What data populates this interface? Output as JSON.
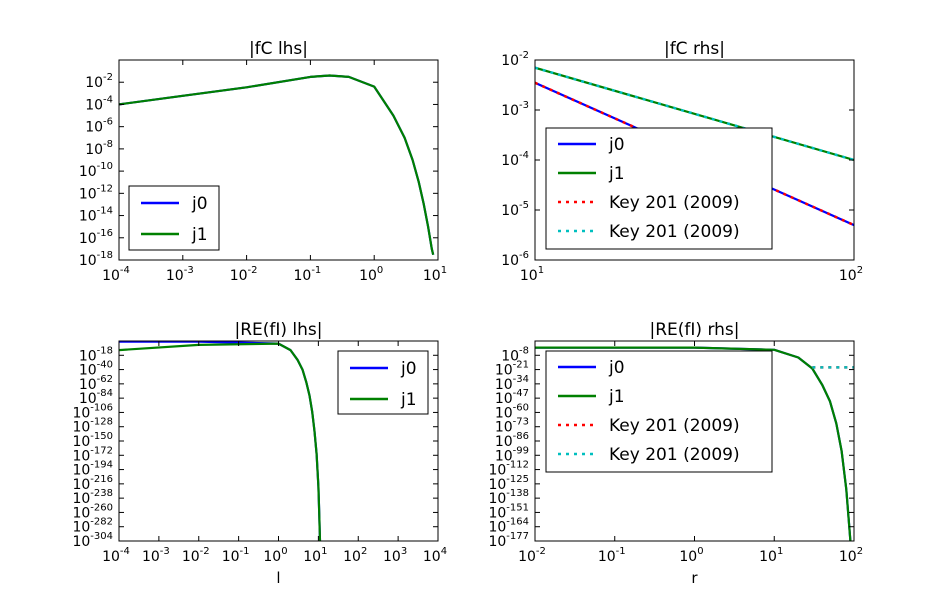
{
  "chart_data": [
    {
      "type": "line",
      "title": "|fC lhs|",
      "xlabel": "",
      "ylabel": "",
      "xscale": "log",
      "yscale": "log",
      "xlim": [
        0.0001,
        10
      ],
      "ylim": [
        1e-18,
        1
      ],
      "xticks": [
        {
          "base": "10",
          "exp": "-4"
        },
        {
          "base": "10",
          "exp": "-3"
        },
        {
          "base": "10",
          "exp": "-2"
        },
        {
          "base": "10",
          "exp": "-1"
        },
        {
          "base": "10",
          "exp": "0"
        },
        {
          "base": "10",
          "exp": "1"
        }
      ],
      "yticks": [
        {
          "base": "10",
          "exp": "-2"
        },
        {
          "base": "10",
          "exp": "-4"
        },
        {
          "base": "10",
          "exp": "-6"
        },
        {
          "base": "10",
          "exp": "-8"
        },
        {
          "base": "10",
          "exp": "-10"
        },
        {
          "base": "10",
          "exp": "-12"
        },
        {
          "base": "10",
          "exp": "-14"
        },
        {
          "base": "10",
          "exp": "-16"
        },
        {
          "base": "10",
          "exp": "-18"
        }
      ],
      "legend": {
        "placement": "lower-left",
        "entries": [
          "j0",
          "j1"
        ]
      },
      "series": [
        {
          "name": "j0",
          "color": "#0000ff",
          "style": "solid",
          "x": [
            0.0001,
            0.001,
            0.01,
            0.1,
            0.2,
            0.4,
            1,
            2,
            3,
            4,
            5,
            6,
            7,
            8,
            8.4
          ],
          "y": [
            0.0001,
            0.0006,
            0.0035,
            0.03,
            0.04,
            0.03,
            0.004,
            1e-05,
            1e-07,
            1e-09,
            1e-11,
            1e-13,
            1e-15,
            1e-17,
            3e-18
          ]
        },
        {
          "name": "j1",
          "color": "#008000",
          "style": "solid",
          "x": [
            0.0001,
            0.001,
            0.01,
            0.1,
            0.2,
            0.4,
            1,
            2,
            3,
            4,
            5,
            6,
            7,
            8,
            8.4
          ],
          "y": [
            0.0001,
            0.0006,
            0.0035,
            0.03,
            0.04,
            0.03,
            0.004,
            1e-05,
            1e-07,
            1e-09,
            1e-11,
            1e-13,
            1e-15,
            1e-17,
            3e-18
          ]
        }
      ]
    },
    {
      "type": "line",
      "title": "|fC rhs|",
      "xlabel": "",
      "ylabel": "",
      "xscale": "log",
      "yscale": "log",
      "xlim": [
        10,
        100
      ],
      "ylim": [
        1e-06,
        0.01
      ],
      "xticks": [
        {
          "base": "10",
          "exp": "1"
        },
        {
          "base": "10",
          "exp": "2"
        }
      ],
      "yticks": [
        {
          "base": "10",
          "exp": "-2"
        },
        {
          "base": "10",
          "exp": "-3"
        },
        {
          "base": "10",
          "exp": "-4"
        },
        {
          "base": "10",
          "exp": "-5"
        },
        {
          "base": "10",
          "exp": "-6"
        }
      ],
      "legend": {
        "placement": "lower-left",
        "entries": [
          "j0",
          "j1",
          "Key 201 (2009)",
          "Key 201 (2009)"
        ]
      },
      "series": [
        {
          "name": "j0",
          "color": "#0000ff",
          "style": "solid",
          "x": [
            10,
            100
          ],
          "y": [
            0.0035,
            5e-06
          ]
        },
        {
          "name": "j1",
          "color": "#008000",
          "style": "solid",
          "x": [
            10,
            100
          ],
          "y": [
            0.007,
            0.0001
          ]
        },
        {
          "name": "Key 201 (2009)",
          "color": "#ff0000",
          "style": "dotted",
          "x": [
            10,
            100
          ],
          "y": [
            0.0035,
            5e-06
          ]
        },
        {
          "name": "Key 201 (2009)",
          "color": "#00bfbf",
          "style": "dotted",
          "x": [
            10,
            100
          ],
          "y": [
            0.007,
            0.0001
          ]
        }
      ]
    },
    {
      "type": "line",
      "title": "|RE(fI) lhs|",
      "xlabel": "l",
      "ylabel": "",
      "xscale": "log",
      "yscale": "log",
      "xlim": [
        0.0001,
        10000
      ],
      "ylim": [
        1e-304,
        10000.0
      ],
      "xticks": [
        {
          "base": "10",
          "exp": "-4"
        },
        {
          "base": "10",
          "exp": "-3"
        },
        {
          "base": "10",
          "exp": "-2"
        },
        {
          "base": "10",
          "exp": "-1"
        },
        {
          "base": "10",
          "exp": "0"
        },
        {
          "base": "10",
          "exp": "1"
        },
        {
          "base": "10",
          "exp": "2"
        },
        {
          "base": "10",
          "exp": "3"
        },
        {
          "base": "10",
          "exp": "4"
        }
      ],
      "yticks": [
        {
          "base": "10",
          "exp": "-18"
        },
        {
          "base": "10",
          "exp": "-40"
        },
        {
          "base": "10",
          "exp": "-62"
        },
        {
          "base": "10",
          "exp": "-84"
        },
        {
          "base": "10",
          "exp": "-106"
        },
        {
          "base": "10",
          "exp": "-128"
        },
        {
          "base": "10",
          "exp": "-150"
        },
        {
          "base": "10",
          "exp": "-172"
        },
        {
          "base": "10",
          "exp": "-194"
        },
        {
          "base": "10",
          "exp": "-216"
        },
        {
          "base": "10",
          "exp": "-238"
        },
        {
          "base": "10",
          "exp": "-260"
        },
        {
          "base": "10",
          "exp": "-282"
        },
        {
          "base": "10",
          "exp": "-304"
        }
      ],
      "legend": {
        "placement": "upper-right",
        "entries": [
          "j0",
          "j1"
        ]
      },
      "series": [
        {
          "name": "j0",
          "color": "#0000ff",
          "style": "solid",
          "x": [
            0.0001,
            0.01,
            1,
            2,
            3,
            4,
            5,
            6,
            7,
            8,
            9,
            10,
            10.5,
            11
          ],
          "y": [
            1000.0,
            1000.0,
            1,
            1e-10,
            1e-25,
            1e-40,
            1e-60,
            1e-80,
            1e-105,
            1e-135,
            1e-170,
            1e-220,
            1e-260,
            1e-304
          ]
        },
        {
          "name": "j1",
          "color": "#008000",
          "style": "solid",
          "x": [
            0.0001,
            0.01,
            1,
            2,
            3,
            4,
            5,
            6,
            7,
            8,
            9,
            10,
            10.5,
            11
          ],
          "y": [
            1e-10,
            0.01,
            1,
            1e-10,
            1e-25,
            1e-40,
            1e-60,
            1e-80,
            1e-105,
            1e-135,
            1e-170,
            1e-220,
            1e-260,
            1e-304
          ]
        }
      ]
    },
    {
      "type": "line",
      "title": "|RE(fI) rhs|",
      "xlabel": "r",
      "ylabel": "",
      "xscale": "log",
      "yscale": "log",
      "xlim": [
        0.01,
        100
      ],
      "ylim": [
        1e-177,
        100000.0
      ],
      "xticks": [
        {
          "base": "10",
          "exp": "-2"
        },
        {
          "base": "10",
          "exp": "-1"
        },
        {
          "base": "10",
          "exp": "0"
        },
        {
          "base": "10",
          "exp": "1"
        },
        {
          "base": "10",
          "exp": "2"
        }
      ],
      "yticks": [
        {
          "base": "10",
          "exp": "-8"
        },
        {
          "base": "10",
          "exp": "-21"
        },
        {
          "base": "10",
          "exp": "-34"
        },
        {
          "base": "10",
          "exp": "-47"
        },
        {
          "base": "10",
          "exp": "-60"
        },
        {
          "base": "10",
          "exp": "-73"
        },
        {
          "base": "10",
          "exp": "-86"
        },
        {
          "base": "10",
          "exp": "-99"
        },
        {
          "base": "10",
          "exp": "-112"
        },
        {
          "base": "10",
          "exp": "-125"
        },
        {
          "base": "10",
          "exp": "-138"
        },
        {
          "base": "10",
          "exp": "-151"
        },
        {
          "base": "10",
          "exp": "-164"
        },
        {
          "base": "10",
          "exp": "-177"
        }
      ],
      "legend": {
        "placement": "upper-left",
        "entries": [
          "j0",
          "j1",
          "Key 201 (2009)",
          "Key 201 (2009)"
        ]
      },
      "series": [
        {
          "name": "j0",
          "color": "#0000ff",
          "style": "solid",
          "x": [
            0.01,
            1,
            10,
            20,
            30,
            40,
            50,
            60,
            70,
            80,
            90
          ],
          "y": [
            0.1,
            0.1,
            0.001,
            1e-10,
            1e-20,
            1e-35,
            1e-50,
            1e-70,
            1e-95,
            1e-130,
            1e-177
          ]
        },
        {
          "name": "j1",
          "color": "#008000",
          "style": "solid",
          "x": [
            0.01,
            1,
            10,
            20,
            30,
            40,
            50,
            60,
            70,
            80,
            90
          ],
          "y": [
            0.1,
            0.1,
            0.001,
            1e-10,
            1e-20,
            1e-35,
            1e-50,
            1e-70,
            1e-95,
            1e-130,
            1e-177
          ]
        },
        {
          "name": "Key 201 (2009)",
          "color": "#ff0000",
          "style": "dotted",
          "x": [
            30,
            100
          ],
          "y": [
            1e-19,
            1e-19
          ]
        },
        {
          "name": "Key 201 (2009)",
          "color": "#00bfbf",
          "style": "dotted",
          "x": [
            30,
            100
          ],
          "y": [
            1e-19,
            1e-19
          ]
        }
      ]
    }
  ]
}
